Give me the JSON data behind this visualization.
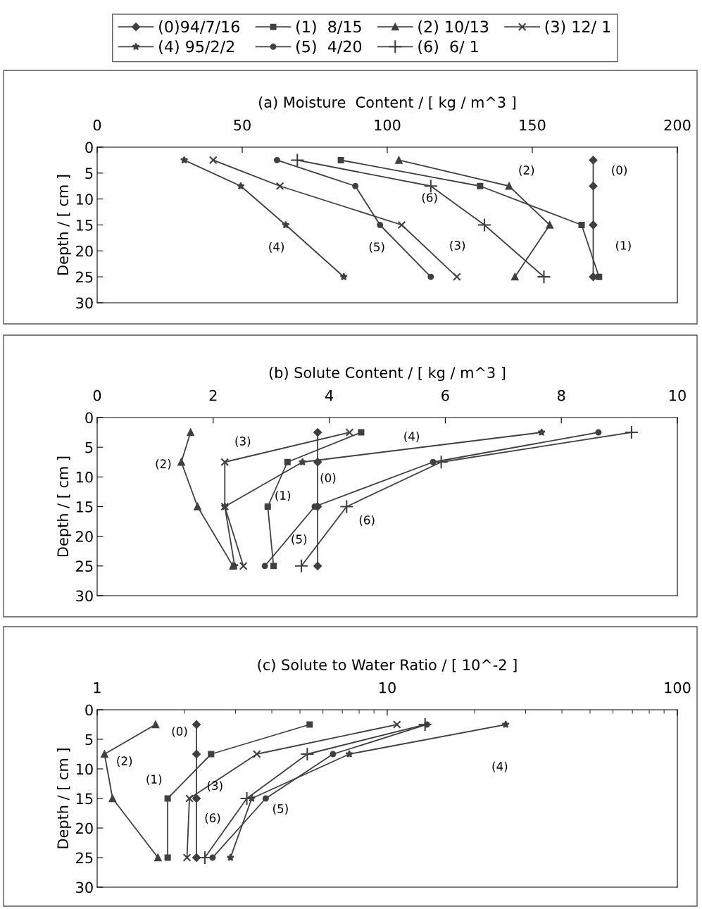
{
  "chart_data": [
    {
      "type": "line",
      "xlabel": "(a) Moisture  Content / [ kg / m^3 ]",
      "ylabel": "Depth / [ cm ]",
      "xlim": [
        0,
        200
      ],
      "xticks": [
        0,
        50,
        100,
        150,
        200
      ],
      "ylim": [
        30,
        0
      ],
      "yticks": [
        0,
        5,
        10,
        15,
        20,
        25,
        30
      ],
      "grid": false,
      "legend": "top",
      "series": [
        {
          "name": "(0)94/7/16",
          "color": "#404040",
          "marker": "diamond",
          "x": [
            171,
            171,
            171,
            171
          ],
          "values": [
            2.5,
            7.5,
            15,
            25
          ]
        },
        {
          "name": "(1)  8/15",
          "color": "#404040",
          "marker": "square",
          "x": [
            84,
            132,
            167,
            173
          ],
          "values": [
            2.5,
            7.5,
            15,
            25
          ]
        },
        {
          "name": "(2) 10/13",
          "color": "#404040",
          "marker": "triangle",
          "x": [
            104,
            142,
            156,
            144
          ],
          "values": [
            2.5,
            7.5,
            15,
            25
          ]
        },
        {
          "name": "(3) 12/ 1",
          "color": "#404040",
          "marker": "cross",
          "x": [
            40,
            63,
            105,
            124
          ],
          "values": [
            2.5,
            7.5,
            15,
            25
          ]
        },
        {
          "name": "(4) 95/2/2",
          "color": "#404040",
          "marker": "star",
          "x": [
            30,
            49.5,
            65,
            85
          ],
          "values": [
            2.5,
            7.5,
            15,
            25
          ]
        },
        {
          "name": "(5)  4/20",
          "color": "#404040",
          "marker": "circle",
          "x": [
            62,
            89,
            97.5,
            115
          ],
          "values": [
            2.5,
            7.5,
            15,
            25
          ]
        },
        {
          "name": "(6)  6/ 1",
          "color": "#404040",
          "marker": "plus",
          "x": [
            69,
            115,
            133.5,
            154
          ],
          "values": [
            2.5,
            7.5,
            15,
            25
          ]
        }
      ],
      "annotations": [
        "(0)",
        "(2)",
        "(6)",
        "(1)",
        "(3)",
        "(5)",
        "(4)"
      ]
    },
    {
      "type": "line",
      "xlabel": "(b) Solute Content / [ kg / m^3 ]",
      "ylabel": "Depth / [ cm ]",
      "xlim": [
        0,
        10
      ],
      "xticks": [
        0,
        2,
        4,
        6,
        8,
        10
      ],
      "ylim": [
        30,
        0
      ],
      "yticks": [
        0,
        5,
        10,
        15,
        20,
        25,
        30
      ],
      "grid": false,
      "series": [
        {
          "color": "#404040",
          "marker": "diamond",
          "x": [
            3.8,
            3.8,
            3.8,
            3.8
          ],
          "values": [
            2.5,
            7.5,
            15,
            25
          ]
        },
        {
          "color": "#404040",
          "marker": "square",
          "x": [
            4.55,
            3.28,
            2.94,
            3.04
          ],
          "values": [
            2.5,
            7.5,
            15,
            25
          ]
        },
        {
          "color": "#404040",
          "marker": "triangle",
          "x": [
            1.61,
            1.45,
            1.73,
            2.34
          ],
          "values": [
            2.5,
            7.5,
            15,
            25
          ]
        },
        {
          "color": "#404040",
          "marker": "cross",
          "x": [
            4.35,
            2.2,
            2.2,
            2.52
          ],
          "values": [
            2.5,
            7.5,
            15,
            25
          ]
        },
        {
          "color": "#404040",
          "marker": "star",
          "x": [
            7.66,
            3.54,
            2.2,
            2.37
          ],
          "values": [
            2.5,
            7.5,
            15,
            25
          ]
        },
        {
          "color": "#404040",
          "marker": "circle",
          "x": [
            8.64,
            5.79,
            3.75,
            2.89
          ],
          "values": [
            2.5,
            7.5,
            15,
            25
          ]
        },
        {
          "color": "#404040",
          "marker": "plus",
          "x": [
            9.21,
            5.93,
            4.3,
            3.52
          ],
          "values": [
            2.5,
            7.5,
            15,
            25
          ]
        }
      ],
      "annotations": [
        "(3)",
        "(4)",
        "(2)",
        "(0)",
        "(1)",
        "(6)",
        "(5)"
      ]
    },
    {
      "type": "line",
      "xlabel": "(c) Solute to Water Ratio / [ 10^-2 ]",
      "ylabel": "Depth / [ cm ]",
      "log": "x",
      "xlim": [
        1,
        100
      ],
      "xticks": [
        1,
        10,
        100
      ],
      "ylim": [
        30,
        0
      ],
      "yticks": [
        0,
        5,
        10,
        15,
        20,
        25,
        30
      ],
      "grid": false,
      "series": [
        {
          "color": "#404040",
          "marker": "diamond",
          "x": [
            2.2,
            2.2,
            2.2,
            2.2
          ],
          "values": [
            2.5,
            7.5,
            15,
            25
          ]
        },
        {
          "color": "#404040",
          "marker": "square",
          "x": [
            5.4,
            2.47,
            1.75,
            1.75
          ],
          "values": [
            2.5,
            7.5,
            15,
            25
          ]
        },
        {
          "color": "#404040",
          "marker": "triangle",
          "x": [
            1.59,
            1.06,
            1.13,
            1.62
          ],
          "values": [
            2.5,
            7.5,
            15,
            25
          ]
        },
        {
          "color": "#404040",
          "marker": "cross",
          "x": [
            10.8,
            3.55,
            2.08,
            2.04
          ],
          "values": [
            2.5,
            7.5,
            15,
            25
          ]
        },
        {
          "color": "#404040",
          "marker": "star",
          "x": [
            25.6,
            7.4,
            3.41,
            2.88
          ],
          "values": [
            2.5,
            7.5,
            15,
            25
          ]
        },
        {
          "color": "#404040",
          "marker": "circle",
          "x": [
            13.7,
            6.5,
            3.81,
            2.5
          ],
          "values": [
            2.5,
            7.5,
            15,
            25
          ]
        },
        {
          "color": "#404040",
          "marker": "plus",
          "x": [
            13.5,
            5.3,
            3.28,
            2.35
          ],
          "values": [
            2.5,
            7.5,
            15,
            25
          ]
        }
      ],
      "annotations": [
        "(0)",
        "(2)",
        "(1)",
        "(3)",
        "(6)",
        "(5)",
        "(4)"
      ]
    }
  ]
}
